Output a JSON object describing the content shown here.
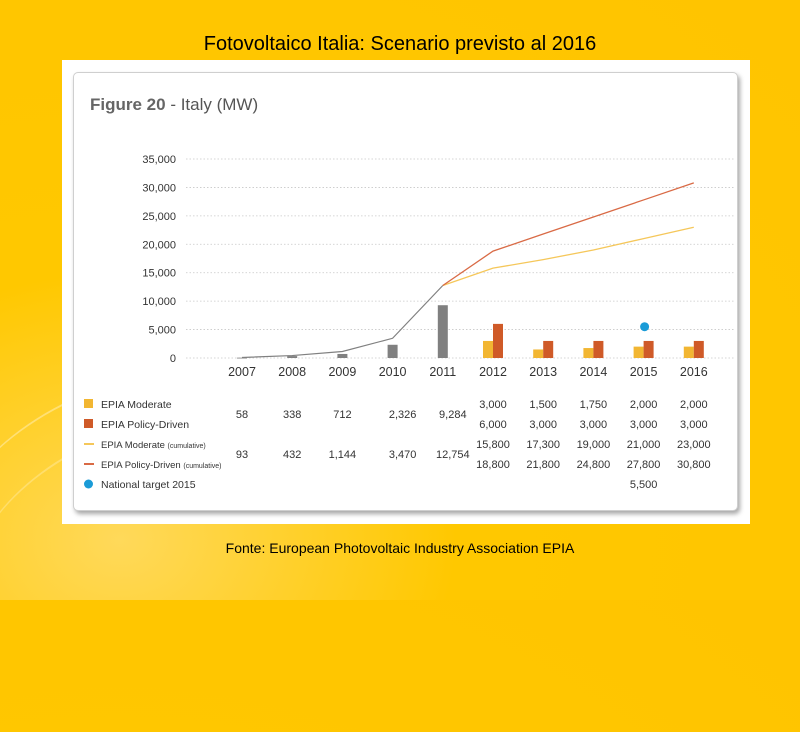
{
  "slide": {
    "title": "Fotovoltaico Italia: Scenario previsto al 2016",
    "source": "Fonte: European Photovoltaic Industry Association EPIA"
  },
  "figure": {
    "number": "Figure 20",
    "caption": " - Italy (MW)"
  },
  "colors": {
    "historical": "#808080",
    "moderate": "#f2b632",
    "policy": "#cf5a28",
    "moderate_line": "#f5c75a",
    "policy_line": "#d96a45",
    "target": "#1a9bd7"
  },
  "chart_data": {
    "type": "bar",
    "title": "Figure 20 - Italy (MW)",
    "ylim": [
      0,
      35000
    ],
    "y_ticks": [
      "35,000",
      "30,000",
      "25,000",
      "20,000",
      "15,000",
      "10,000",
      "5,000",
      "0"
    ],
    "y_tick_values": [
      35000,
      30000,
      25000,
      20000,
      15000,
      10000,
      5000,
      0
    ],
    "categories": [
      "2007",
      "2008",
      "2009",
      "2010",
      "2011",
      "2012",
      "2013",
      "2014",
      "2015",
      "2016"
    ],
    "historical": {
      "annual": [
        58,
        338,
        712,
        2326,
        9284
      ],
      "cumulative": [
        93,
        432,
        1144,
        3470,
        12754
      ]
    },
    "series": [
      {
        "name": "EPIA Moderate",
        "kind": "bar",
        "values": [
          null,
          null,
          null,
          null,
          null,
          3000,
          1500,
          1750,
          2000,
          2000
        ]
      },
      {
        "name": "EPIA Policy-Driven",
        "kind": "bar",
        "values": [
          null,
          null,
          null,
          null,
          null,
          6000,
          3000,
          3000,
          3000,
          3000
        ]
      },
      {
        "name": "EPIA Moderate",
        "name_suffix": "(cumulative)",
        "kind": "line",
        "values": [
          null,
          null,
          null,
          null,
          12754,
          15800,
          17300,
          19000,
          21000,
          23000
        ]
      },
      {
        "name": "EPIA Policy-Driven",
        "name_suffix": "(cumulative)",
        "kind": "line",
        "values": [
          null,
          null,
          null,
          null,
          12754,
          18800,
          21800,
          24800,
          27800,
          30800
        ]
      },
      {
        "name": "National target 2015",
        "kind": "point",
        "values": [
          null,
          null,
          null,
          null,
          null,
          null,
          null,
          null,
          5500,
          null
        ]
      }
    ],
    "table": {
      "hist_annual": [
        "58",
        "338",
        "712",
        "2,326",
        "9,284"
      ],
      "hist_cumulative": [
        "93",
        "432",
        "1,144",
        "3,470",
        "12,754"
      ],
      "moderate": [
        "3,000",
        "1,500",
        "1,750",
        "2,000",
        "2,000"
      ],
      "policy": [
        "6,000",
        "3,000",
        "3,000",
        "3,000",
        "3,000"
      ],
      "moderate_cum": [
        "15,800",
        "17,300",
        "19,000",
        "21,000",
        "23,000"
      ],
      "policy_cum": [
        "18,800",
        "21,800",
        "24,800",
        "27,800",
        "30,800"
      ],
      "target": [
        "",
        "",
        "",
        "5,500",
        ""
      ]
    },
    "grid": true,
    "legend_position": "bottom-left"
  }
}
